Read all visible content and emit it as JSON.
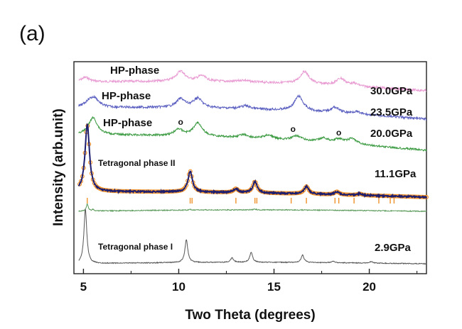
{
  "panel_label": "(a)",
  "chart_data": {
    "type": "line",
    "title": "",
    "xlabel": "Two Theta (degrees)",
    "ylabel": "Intensity (arb.unit)",
    "xlim": [
      4.5,
      23
    ],
    "x_ticks": [
      5,
      10,
      15,
      20
    ],
    "y_ticks": [],
    "grid": false,
    "legend": "none",
    "series": [
      {
        "pressure_label": "30.0GPa",
        "phase_label": "HP-phase",
        "color": "#e89ad2",
        "baseline": 0.0,
        "peaks": [
          [
            5.1,
            0.3
          ],
          [
            10.1,
            0.65
          ],
          [
            11.2,
            0.35
          ],
          [
            13.4,
            0.12
          ],
          [
            16.6,
            0.8
          ],
          [
            18.5,
            0.45
          ],
          [
            19.2,
            0.15
          ]
        ]
      },
      {
        "pressure_label": "23.5GPa",
        "phase_label": "HP-phase",
        "color": "#5a5fc0",
        "baseline": 0.0,
        "peaks": [
          [
            5.3,
            0.35
          ],
          [
            5.6,
            0.5
          ],
          [
            10.1,
            0.55
          ],
          [
            11.0,
            0.6
          ],
          [
            13.5,
            0.2
          ],
          [
            16.3,
            0.95
          ],
          [
            18.2,
            0.35
          ],
          [
            19.3,
            0.15
          ]
        ]
      },
      {
        "pressure_label": "20.0GPa",
        "phase_label": "HP-phase",
        "color": "#3a9a40",
        "baseline": 0.0,
        "peaks": [
          [
            5.5,
            1.1
          ],
          [
            10.0,
            0.4
          ],
          [
            11.0,
            0.85
          ],
          [
            13.4,
            0.2
          ],
          [
            14.7,
            0.25
          ],
          [
            16.2,
            0.3
          ],
          [
            17.6,
            0.25
          ],
          [
            18.4,
            0.25
          ],
          [
            19.1,
            0.35
          ]
        ]
      },
      {
        "pressure_label": "11.1GPa",
        "phase_label": "Tetragonal phase II",
        "color": "#1e1e70",
        "fit_color": "#f0922a",
        "baseline": 0.0,
        "peaks": [
          [
            5.2,
            4.5
          ],
          [
            10.6,
            1.4
          ],
          [
            13.0,
            0.25
          ],
          [
            14.0,
            0.75
          ],
          [
            16.7,
            0.5
          ],
          [
            18.3,
            0.2
          ],
          [
            19.5,
            0.1
          ]
        ],
        "reflection_ticks": [
          5.2,
          10.6,
          10.7,
          13.0,
          14.0,
          14.1,
          15.9,
          16.7,
          18.2,
          18.4,
          19.2,
          20.5,
          21.1,
          21.3
        ]
      },
      {
        "pressure_label": "",
        "phase_label": "",
        "color": "#5a9a5a",
        "baseline": 0.0,
        "peaks": [
          [
            5.2,
            1.0
          ],
          [
            5.5,
            0.25
          ],
          [
            10.6,
            0.12
          ],
          [
            14.0,
            0.12
          ]
        ]
      },
      {
        "pressure_label": "2.9GPa",
        "phase_label": "Tetragonal phase I",
        "color": "#555555",
        "baseline": 0.0,
        "peaks": [
          [
            5.1,
            5.5
          ],
          [
            10.4,
            2.3
          ],
          [
            12.8,
            0.45
          ],
          [
            13.8,
            1.0
          ],
          [
            16.5,
            0.75
          ],
          [
            18.1,
            0.15
          ],
          [
            20.1,
            0.15
          ]
        ]
      }
    ],
    "hp_markers": [
      {
        "x": 10.1,
        "label": "o"
      },
      {
        "x": 16.0,
        "label": "o"
      },
      {
        "x": 18.4,
        "label": "o"
      }
    ]
  }
}
